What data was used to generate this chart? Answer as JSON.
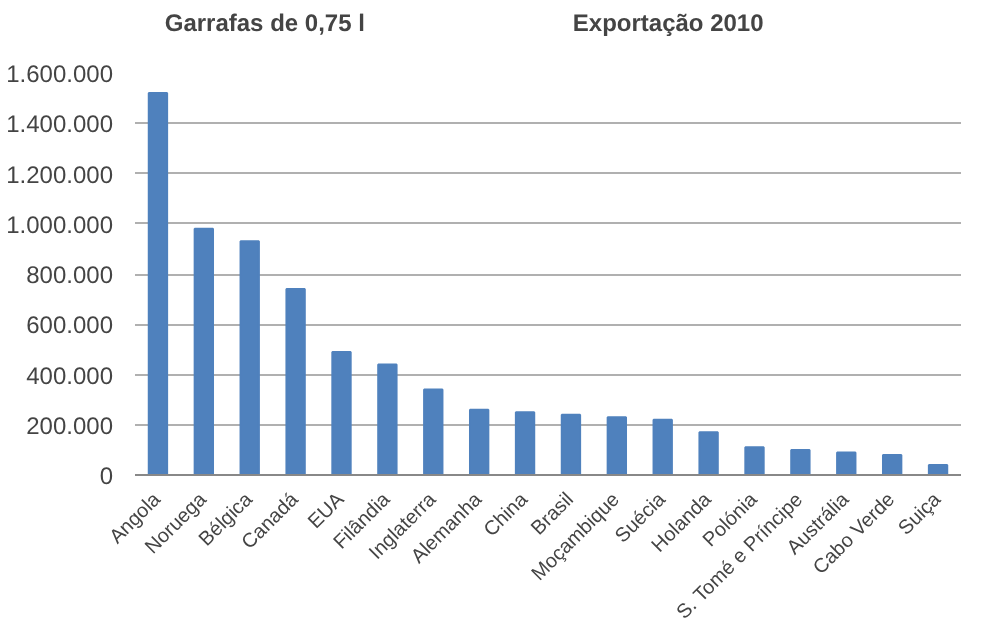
{
  "chart_data": {
    "type": "bar",
    "title": "Exportação 2010",
    "ylabel": "Garrafas de 0,75 l",
    "categories": [
      "Angola",
      "Noruega",
      "Bélgica",
      "Canadá",
      "EUA",
      "Filândia",
      "Inglaterra",
      "Alemanha",
      "China",
      "Brasil",
      "Moçambique",
      "Suécia",
      "Holanda",
      "Polónia",
      "S. Tomé e Príncipe",
      "Austrália",
      "Cabo Verde",
      "Suiça"
    ],
    "values": [
      1520000,
      980000,
      930000,
      740000,
      490000,
      440000,
      340000,
      260000,
      250000,
      240000,
      230000,
      220000,
      170000,
      110000,
      100000,
      90000,
      80000,
      40000
    ],
    "color": "#4f81bd",
    "ylim": [
      0,
      1600000
    ],
    "yticks": [
      0,
      {
        "value": 200000,
        "label": "200.000"
      },
      {
        "value": 400000,
        "label": "400.000"
      },
      {
        "value": 600000,
        "label": "600.000"
      },
      {
        "value": 800000,
        "label": "800.000"
      },
      {
        "value": 1000000,
        "label": "1.000.000"
      },
      {
        "value": 1200000,
        "label": "1.200.000"
      },
      {
        "value": 1400000,
        "label": "1.400.000"
      },
      {
        "value": 1600000,
        "label": "1.600.000"
      }
    ],
    "grid": "y"
  }
}
